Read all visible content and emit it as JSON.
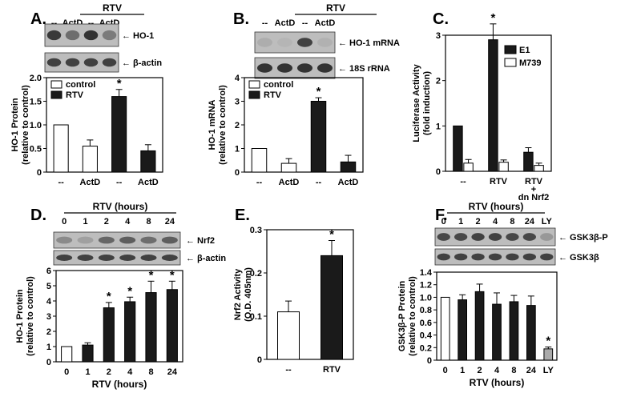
{
  "panels": [
    {
      "label": "A."
    },
    {
      "label": "B."
    },
    {
      "label": "C."
    },
    {
      "label": "D."
    },
    {
      "label": "E."
    },
    {
      "label": "F."
    }
  ],
  "colors": {
    "filled": "#1a1a1a",
    "open": "#ffffff",
    "ly": "#aaaaaa",
    "blot_band": "#2b2b2b",
    "blot_bg": "#bdbdbd"
  },
  "blots": {
    "A": {
      "group_label": "RTV",
      "lane_labels": [
        "--",
        "ActD",
        "--",
        "ActD"
      ],
      "rows": [
        "HO-1",
        "β-actin"
      ]
    },
    "B": {
      "group_label": "RTV",
      "lane_labels": [
        "--",
        "ActD",
        "--",
        "ActD"
      ],
      "rows": [
        "HO-1 mRNA",
        "18S rRNA"
      ]
    },
    "D": {
      "group_label": "RTV (hours)",
      "lane_labels": [
        "0",
        "1",
        "2",
        "4",
        "8",
        "24"
      ],
      "rows": [
        "Nrf2",
        "β-actin"
      ]
    },
    "F": {
      "group_label": "RTV (hours)",
      "lane_labels": [
        "0",
        "1",
        "2",
        "4",
        "8",
        "24",
        "LY"
      ],
      "rows": [
        "GSK3β-P",
        "GSK3β"
      ]
    }
  },
  "chart_data": [
    {
      "panel": "A",
      "type": "bar",
      "ylabel": "HO-1 Protein\n(relative to control)",
      "ylim": [
        0,
        2
      ],
      "yticks": [
        0,
        0.5,
        1.0,
        1.5,
        2.0
      ],
      "categories": [
        "--",
        "ActD",
        "--",
        "ActD"
      ],
      "values": [
        1.0,
        0.55,
        1.6,
        0.45
      ],
      "errors": [
        0,
        0.13,
        0.15,
        0.13
      ],
      "fill": [
        "open",
        "open",
        "filled",
        "filled"
      ],
      "star": [
        false,
        false,
        true,
        false
      ],
      "legend": [
        "control",
        "RTV"
      ],
      "legend_position": "top-left"
    },
    {
      "panel": "B",
      "type": "bar",
      "ylabel": "HO-1 mRNA\n(relative to control)",
      "ylim": [
        0,
        4
      ],
      "yticks": [
        0,
        1,
        2,
        3,
        4
      ],
      "categories": [
        "--",
        "ActD",
        "--",
        "ActD"
      ],
      "values": [
        1.0,
        0.37,
        3.0,
        0.43
      ],
      "errors": [
        0,
        0.2,
        0.15,
        0.28
      ],
      "fill": [
        "open",
        "open",
        "filled",
        "filled"
      ],
      "star": [
        false,
        false,
        true,
        false
      ],
      "legend": [
        "control",
        "RTV"
      ],
      "legend_position": "top-left"
    },
    {
      "panel": "C",
      "type": "bar",
      "ylabel": "Luciferase Activity\n(fold induction)",
      "ylim": [
        0,
        3
      ],
      "yticks": [
        0,
        1,
        2,
        3
      ],
      "categories": [
        "--",
        "RTV",
        "RTV\n+\ndn Nrf2"
      ],
      "series": [
        {
          "name": "E1",
          "values": [
            1.0,
            2.9,
            0.42
          ],
          "errors": [
            0,
            0.35,
            0.1
          ]
        },
        {
          "name": "M739",
          "values": [
            0.18,
            0.2,
            0.13
          ],
          "errors": [
            0.08,
            0.05,
            0.05
          ]
        }
      ],
      "star": [
        [
          false,
          true,
          false
        ],
        [
          false,
          false,
          false
        ]
      ],
      "legend_position": "top-right"
    },
    {
      "panel": "D",
      "type": "bar",
      "ylabel": "HO-1 Protein\n(relative to control)",
      "xlabel": "RTV (hours)",
      "ylim": [
        0,
        6
      ],
      "yticks": [
        0,
        1,
        2,
        3,
        4,
        5,
        6
      ],
      "categories": [
        "0",
        "1",
        "2",
        "4",
        "8",
        "24"
      ],
      "values": [
        1.0,
        1.1,
        3.55,
        3.95,
        4.55,
        4.75
      ],
      "errors": [
        0,
        0.15,
        0.35,
        0.3,
        0.75,
        0.55
      ],
      "fill": [
        "open",
        "filled",
        "filled",
        "filled",
        "filled",
        "filled"
      ],
      "star": [
        false,
        false,
        true,
        true,
        true,
        true
      ]
    },
    {
      "panel": "E",
      "type": "bar",
      "ylabel": "Nrf2 Activity\n(O.D. 405nm)",
      "ylim": [
        0,
        0.3
      ],
      "yticks": [
        0,
        0.1,
        0.2,
        0.3
      ],
      "categories": [
        "--",
        "RTV"
      ],
      "values": [
        0.11,
        0.24
      ],
      "errors": [
        0.025,
        0.035
      ],
      "fill": [
        "open",
        "filled"
      ],
      "star": [
        false,
        true
      ]
    },
    {
      "panel": "F",
      "type": "bar",
      "ylabel": "GSK3β-P Protein\n(relative to control)",
      "xlabel": "RTV (hours)",
      "ylim": [
        0,
        1.4
      ],
      "yticks": [
        0,
        0.2,
        0.4,
        0.6,
        0.8,
        1.0,
        1.2,
        1.4
      ],
      "categories": [
        "0",
        "1",
        "2",
        "4",
        "8",
        "24",
        "LY"
      ],
      "values": [
        1.0,
        0.96,
        1.09,
        0.89,
        0.93,
        0.87,
        0.18
      ],
      "errors": [
        0,
        0.08,
        0.12,
        0.18,
        0.1,
        0.15,
        0.03
      ],
      "fill": [
        "open",
        "filled",
        "filled",
        "filled",
        "filled",
        "filled",
        "ly"
      ],
      "star": [
        false,
        false,
        false,
        false,
        false,
        false,
        true
      ]
    }
  ]
}
